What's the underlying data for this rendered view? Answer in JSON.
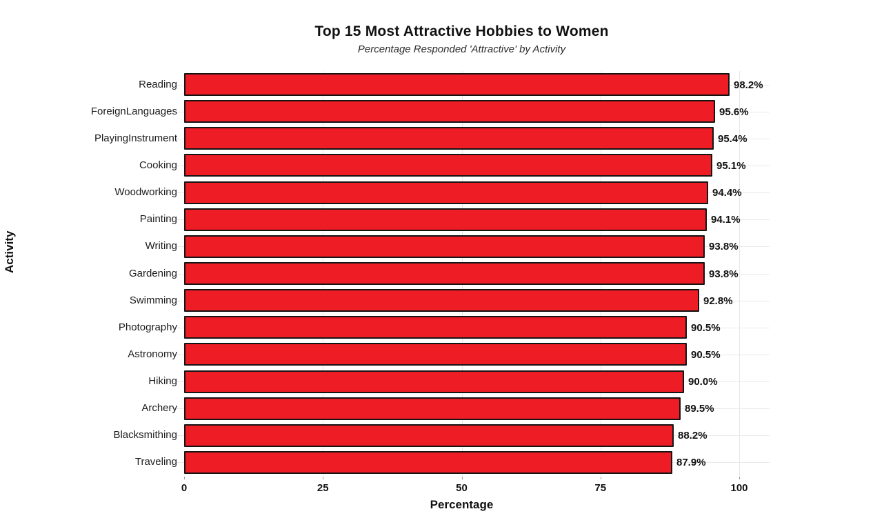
{
  "page": {
    "background": "#ffffff"
  },
  "chart_data": {
    "type": "bar",
    "orientation": "horizontal",
    "title": "Top 15 Most Attractive Hobbies to Women",
    "subtitle": "Percentage Responded 'Attractive' by Activity",
    "xlabel": "Percentage",
    "ylabel": "Activity",
    "xlim": [
      0,
      100
    ],
    "xticks": [
      0,
      25,
      50,
      75,
      100
    ],
    "grid": true,
    "legend": "none",
    "bar_color": "#ee1c25",
    "bar_edge_color": "#141414",
    "categories": [
      "Reading",
      "ForeignLanguages",
      "PlayingInstrument",
      "Cooking",
      "Woodworking",
      "Painting",
      "Writing",
      "Gardening",
      "Swimming",
      "Photography",
      "Astronomy",
      "Hiking",
      "Archery",
      "Blacksmithing",
      "Traveling"
    ],
    "values": [
      98.2,
      95.6,
      95.4,
      95.1,
      94.4,
      94.1,
      93.8,
      93.8,
      92.8,
      90.5,
      90.5,
      90.0,
      89.5,
      88.2,
      87.9
    ],
    "value_labels": [
      "98.2%",
      "95.6%",
      "95.4%",
      "95.1%",
      "94.4%",
      "94.1%",
      "93.8%",
      "93.8%",
      "92.8%",
      "90.5%",
      "90.5%",
      "90.0%",
      "89.5%",
      "88.2%",
      "87.9%"
    ]
  }
}
